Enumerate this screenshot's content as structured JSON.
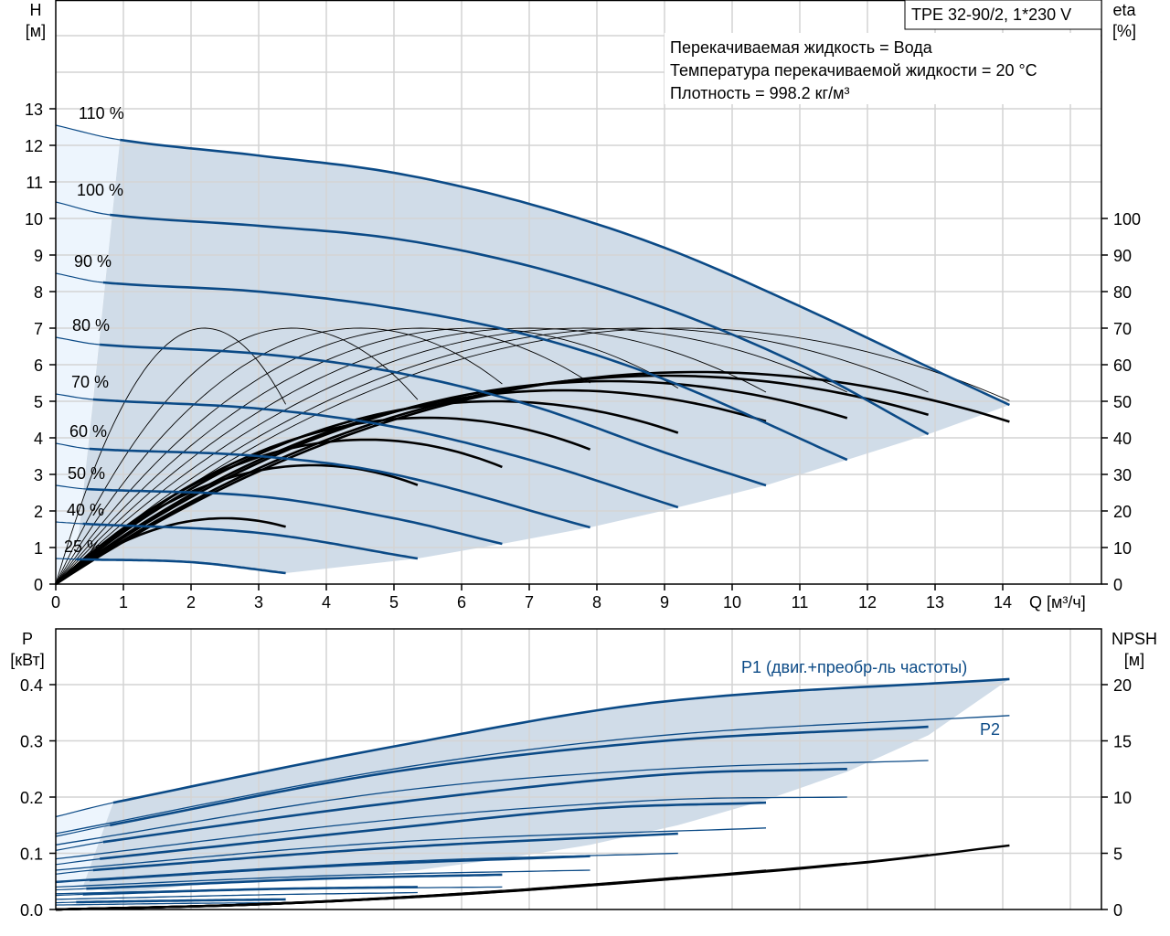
{
  "chart_data": [
    {
      "type": "line",
      "title": "TPE 32-90/2, 1*230 V",
      "info": [
        "Перекачиваемая жидкость = Вода",
        "Температура перекачиваемой жидкости = 20 °C",
        "Плотность = 998.2 кг/м³"
      ],
      "xlabel": "Q [м³/ч]",
      "ylabel": "H",
      "ylabel_unit": "[м]",
      "y2label": "eta",
      "y2label_unit": "[%]",
      "xlim": [
        0,
        15.5
      ],
      "ylim": [
        0,
        16
      ],
      "y2lim": [
        0,
        160
      ],
      "x_ticks": [
        "0",
        "1",
        "2",
        "3",
        "4",
        "5",
        "6",
        "7",
        "8",
        "9",
        "10",
        "11",
        "12",
        "13",
        "14"
      ],
      "y_ticks": [
        "0",
        "1",
        "2",
        "3",
        "4",
        "5",
        "6",
        "7",
        "8",
        "9",
        "10",
        "11",
        "12",
        "13"
      ],
      "y2_ticks": [
        "0",
        "10",
        "20",
        "30",
        "40",
        "50",
        "60",
        "70",
        "80",
        "90",
        "100"
      ],
      "grid": true,
      "colors": {
        "head": "#0b4a86",
        "eta": "#000000",
        "shade": "#d0dce8",
        "shade_light": "#edf5fd",
        "grid": "#d4d4d4"
      },
      "head_curves": [
        {
          "name": "110 %",
          "q_start": 0.95,
          "points": [
            [
              0,
              12.55
            ],
            [
              0.95,
              12.15
            ],
            [
              3,
              11.72
            ],
            [
              5,
              11.25
            ],
            [
              7,
              10.4
            ],
            [
              9,
              9.2
            ],
            [
              11,
              7.6
            ],
            [
              13,
              5.85
            ],
            [
              14.1,
              4.9
            ]
          ]
        },
        {
          "name": "100 %",
          "q_start": 0.8,
          "points": [
            [
              0,
              10.45
            ],
            [
              0.8,
              10.1
            ],
            [
              3,
              9.8
            ],
            [
              5,
              9.45
            ],
            [
              7,
              8.7
            ],
            [
              9,
              7.55
            ],
            [
              11,
              6.0
            ],
            [
              12.9,
              4.1
            ]
          ]
        },
        {
          "name": "90 %",
          "q_start": 0.7,
          "points": [
            [
              0,
              8.5
            ],
            [
              0.7,
              8.25
            ],
            [
              3,
              8.0
            ],
            [
              5,
              7.55
            ],
            [
              7,
              6.8
            ],
            [
              9,
              5.6
            ],
            [
              11.7,
              3.4
            ]
          ]
        },
        {
          "name": "80 %",
          "q_start": 0.65,
          "points": [
            [
              0,
              6.75
            ],
            [
              0.65,
              6.55
            ],
            [
              3,
              6.3
            ],
            [
              5,
              5.8
            ],
            [
              7,
              4.9
            ],
            [
              9,
              3.6
            ],
            [
              10.5,
              2.7
            ]
          ]
        },
        {
          "name": "70 %",
          "q_start": 0.55,
          "points": [
            [
              0,
              5.2
            ],
            [
              0.55,
              5.05
            ],
            [
              3,
              4.8
            ],
            [
              5,
              4.3
            ],
            [
              7,
              3.4
            ],
            [
              9.2,
              2.1
            ]
          ]
        },
        {
          "name": "60 %",
          "q_start": 0.5,
          "points": [
            [
              0,
              3.85
            ],
            [
              0.5,
              3.7
            ],
            [
              3,
              3.5
            ],
            [
              5,
              3.0
            ],
            [
              7.9,
              1.55
            ]
          ]
        },
        {
          "name": "50 %",
          "q_start": 0.45,
          "points": [
            [
              0,
              2.7
            ],
            [
              0.45,
              2.6
            ],
            [
              3,
              2.4
            ],
            [
              5,
              1.8
            ],
            [
              6.6,
              1.1
            ]
          ]
        },
        {
          "name": "40 %",
          "q_start": 0.4,
          "points": [
            [
              0,
              1.7
            ],
            [
              0.4,
              1.65
            ],
            [
              3,
              1.4
            ],
            [
              5.35,
              0.7
            ]
          ]
        },
        {
          "name": "25 %",
          "q_start": 0.3,
          "points": [
            [
              0,
              0.7
            ],
            [
              0.3,
              0.68
            ],
            [
              2,
              0.6
            ],
            [
              3.4,
              0.3
            ]
          ]
        }
      ],
      "eta_thin_curves": [
        {
          "peak_q": 2.2,
          "peak_eta": 70,
          "q_end": 3.4
        },
        {
          "peak_q": 3.5,
          "peak_eta": 70,
          "q_end": 5.35
        },
        {
          "peak_q": 4.5,
          "peak_eta": 70,
          "q_end": 6.6
        },
        {
          "peak_q": 5.4,
          "peak_eta": 70,
          "q_end": 7.9
        },
        {
          "peak_q": 6.2,
          "peak_eta": 70,
          "q_end": 9.2
        },
        {
          "peak_q": 7.0,
          "peak_eta": 70,
          "q_end": 10.5
        },
        {
          "peak_q": 7.8,
          "peak_eta": 70,
          "q_end": 11.7
        },
        {
          "peak_q": 8.6,
          "peak_eta": 70,
          "q_end": 12.9
        },
        {
          "peak_q": 9.2,
          "peak_eta": 70,
          "q_end": 14.1
        }
      ],
      "eta_curves": [
        {
          "speed": "25 %",
          "peak_q": 2.5,
          "peak_eta": 18,
          "q_end": 3.4
        },
        {
          "speed": "40 %",
          "peak_q": 3.8,
          "peak_eta": 32.5,
          "q_end": 5.35
        },
        {
          "speed": "50 %",
          "peak_q": 4.6,
          "peak_eta": 39.5,
          "q_end": 6.6
        },
        {
          "speed": "60 %",
          "peak_q": 5.5,
          "peak_eta": 45.5,
          "q_end": 7.9
        },
        {
          "speed": "70 %",
          "peak_q": 6.5,
          "peak_eta": 50,
          "q_end": 9.2
        },
        {
          "speed": "80 %",
          "peak_q": 7.5,
          "peak_eta": 53,
          "q_end": 10.5
        },
        {
          "speed": "90 %",
          "peak_q": 8.2,
          "peak_eta": 55.5,
          "q_end": 11.7
        },
        {
          "speed": "100 %",
          "peak_q": 9.0,
          "peak_eta": 57,
          "q_end": 12.9
        },
        {
          "speed": "110 %",
          "peak_q": 9.5,
          "peak_eta": 58,
          "q_end": 14.1
        }
      ]
    },
    {
      "type": "line",
      "ylabel": "P",
      "ylabel_unit": "[кВт]",
      "y2label": "NPSH",
      "y2label_unit": "[м]",
      "xlim": [
        0,
        15.5
      ],
      "ylim": [
        0,
        0.5
      ],
      "y2lim": [
        0,
        25
      ],
      "y_ticks": [
        "0.0",
        "0.1",
        "0.2",
        "0.3",
        "0.4"
      ],
      "y2_ticks": [
        "0",
        "5",
        "10",
        "15",
        "20"
      ],
      "grid": true,
      "annotations": {
        "p1": "P1 (двиг.+преобр-ль частоты)",
        "p2": "P2"
      },
      "p1_curves": [
        {
          "speed": "110 %",
          "q_start": 0.85,
          "points": [
            [
              0,
              0.165
            ],
            [
              0.85,
              0.19
            ],
            [
              5,
              0.29
            ],
            [
              9,
              0.37
            ],
            [
              14.1,
              0.41
            ]
          ]
        },
        {
          "speed": "100 %",
          "q_start": 0.8,
          "points": [
            [
              0,
              0.13
            ],
            [
              0.8,
              0.15
            ],
            [
              5,
              0.245
            ],
            [
              9,
              0.3
            ],
            [
              12.9,
              0.325
            ]
          ]
        },
        {
          "speed": "90 %",
          "q_start": 0.7,
          "points": [
            [
              0,
              0.105
            ],
            [
              0.7,
              0.12
            ],
            [
              5,
              0.19
            ],
            [
              9,
              0.24
            ],
            [
              11.7,
              0.25
            ]
          ]
        },
        {
          "speed": "80 %",
          "q_start": 0.65,
          "points": [
            [
              0,
              0.08
            ],
            [
              0.65,
              0.09
            ],
            [
              5,
              0.145
            ],
            [
              8,
              0.18
            ],
            [
              10.5,
              0.19
            ]
          ]
        },
        {
          "speed": "70 %",
          "q_start": 0.55,
          "points": [
            [
              0,
              0.063
            ],
            [
              0.55,
              0.07
            ],
            [
              5,
              0.11
            ],
            [
              9.2,
              0.135
            ]
          ]
        },
        {
          "speed": "60 %",
          "q_start": 0.5,
          "points": [
            [
              0,
              0.048
            ],
            [
              0.5,
              0.052
            ],
            [
              4,
              0.077
            ],
            [
              7.9,
              0.095
            ]
          ]
        },
        {
          "speed": "50 %",
          "q_start": 0.45,
          "points": [
            [
              0,
              0.035
            ],
            [
              0.45,
              0.037
            ],
            [
              4,
              0.055
            ],
            [
              6.6,
              0.062
            ]
          ]
        },
        {
          "speed": "40 %",
          "q_start": 0.4,
          "points": [
            [
              0,
              0.025
            ],
            [
              0.4,
              0.027
            ],
            [
              3,
              0.036
            ],
            [
              5.35,
              0.04
            ]
          ]
        },
        {
          "speed": "25 %",
          "q_start": 0.3,
          "points": [
            [
              0,
              0.012
            ],
            [
              0.3,
              0.013
            ],
            [
              2,
              0.016
            ],
            [
              3.4,
              0.018
            ]
          ]
        }
      ],
      "p2_curves": [
        {
          "speed": "110 %",
          "points": [
            [
              0,
              0.135
            ],
            [
              5,
              0.25
            ],
            [
              9,
              0.31
            ],
            [
              14.1,
              0.345
            ]
          ]
        },
        {
          "speed": "100 %",
          "points": [
            [
              0,
              0.115
            ],
            [
              5,
              0.21
            ],
            [
              9,
              0.25
            ],
            [
              12.9,
              0.265
            ]
          ]
        },
        {
          "speed": "90 %",
          "points": [
            [
              0,
              0.09
            ],
            [
              5,
              0.16
            ],
            [
              9,
              0.195
            ],
            [
              11.7,
              0.2
            ]
          ]
        },
        {
          "speed": "80 %",
          "points": [
            [
              0,
              0.07
            ],
            [
              5,
              0.12
            ],
            [
              10.5,
              0.145
            ]
          ]
        },
        {
          "speed": "70 %",
          "points": [
            [
              0,
              0.05
            ],
            [
              5,
              0.085
            ],
            [
              9.2,
              0.1
            ]
          ]
        },
        {
          "speed": "60 %",
          "points": [
            [
              0,
              0.04
            ],
            [
              4,
              0.06
            ],
            [
              7.9,
              0.07
            ]
          ]
        },
        {
          "speed": "50 %",
          "points": [
            [
              0,
              0.028
            ],
            [
              3,
              0.036
            ],
            [
              6.6,
              0.04
            ]
          ]
        },
        {
          "speed": "40 %",
          "points": [
            [
              0,
              0.018
            ],
            [
              3,
              0.026
            ],
            [
              5.35,
              0.03
            ]
          ]
        },
        {
          "speed": "25 %",
          "points": [
            [
              0,
              0.008
            ],
            [
              2,
              0.011
            ],
            [
              3.4,
              0.012
            ]
          ]
        }
      ],
      "npsh_curve": {
        "points": [
          [
            0,
            0
          ],
          [
            3,
            0.45
          ],
          [
            6,
            1.35
          ],
          [
            9,
            2.65
          ],
          [
            12,
            4.2
          ],
          [
            14.1,
            5.7
          ]
        ],
        "q_ends": [
          3.4,
          5.35,
          6.6,
          7.9,
          9.2,
          10.5,
          11.7,
          12.9,
          14.1
        ]
      }
    }
  ]
}
